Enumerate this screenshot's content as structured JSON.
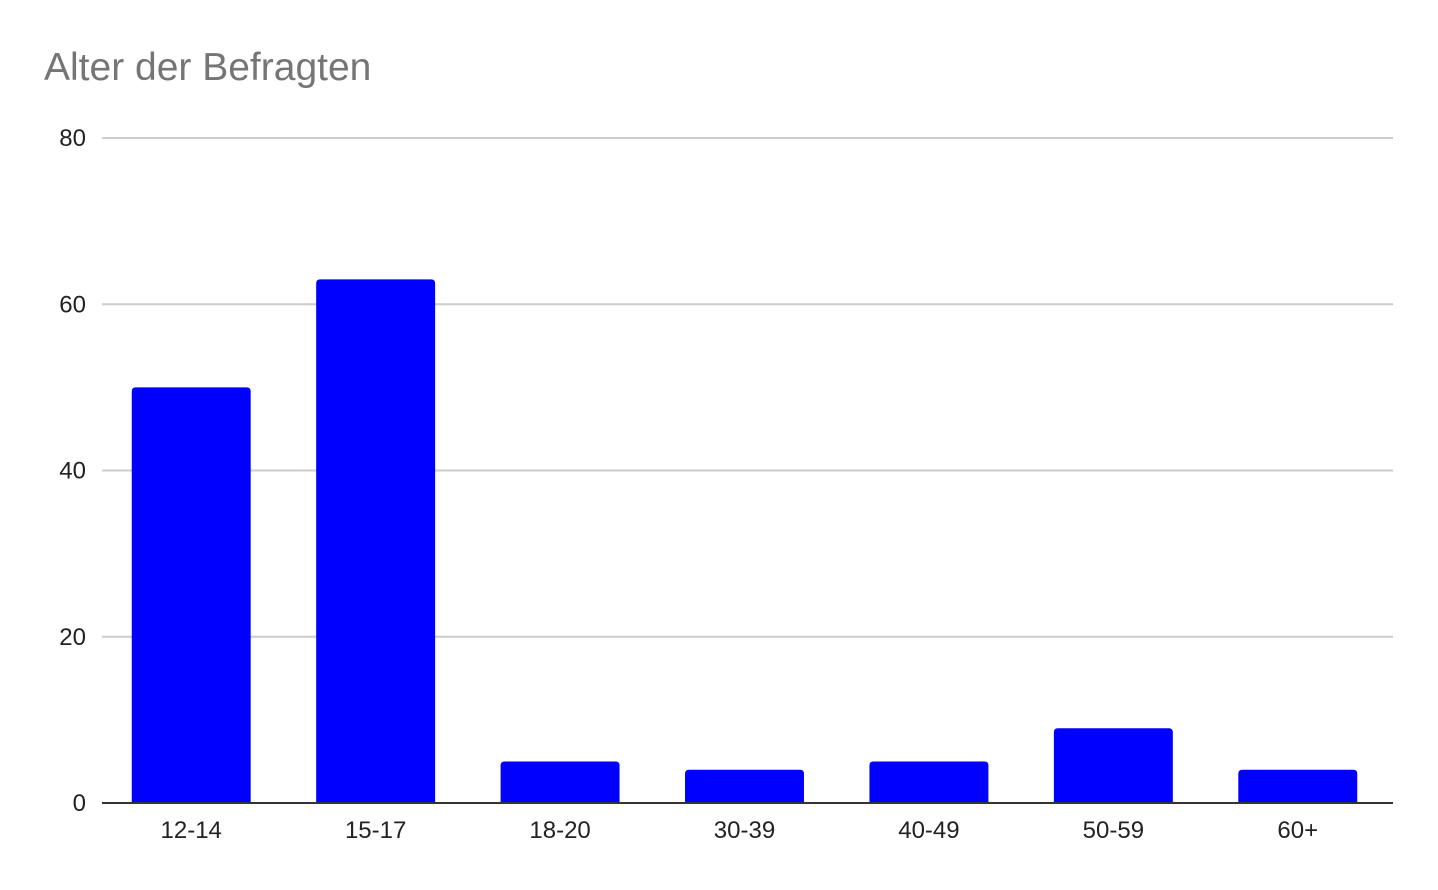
{
  "chart_data": {
    "type": "bar",
    "title": "Alter der Befragten",
    "xlabel": "",
    "ylabel": "",
    "categories": [
      "12-14",
      "15-17",
      "18-20",
      "30-39",
      "40-49",
      "50-59",
      "60+"
    ],
    "values": [
      50,
      63,
      5,
      4,
      5,
      9,
      4
    ],
    "ylim": [
      0,
      80
    ],
    "yticks": [
      0,
      20,
      40,
      60,
      80
    ],
    "grid": true,
    "legend": "none",
    "colors": {
      "bar": "#0000ff",
      "grid": "#cccccc",
      "axis": "#333333",
      "title": "#757575"
    }
  }
}
